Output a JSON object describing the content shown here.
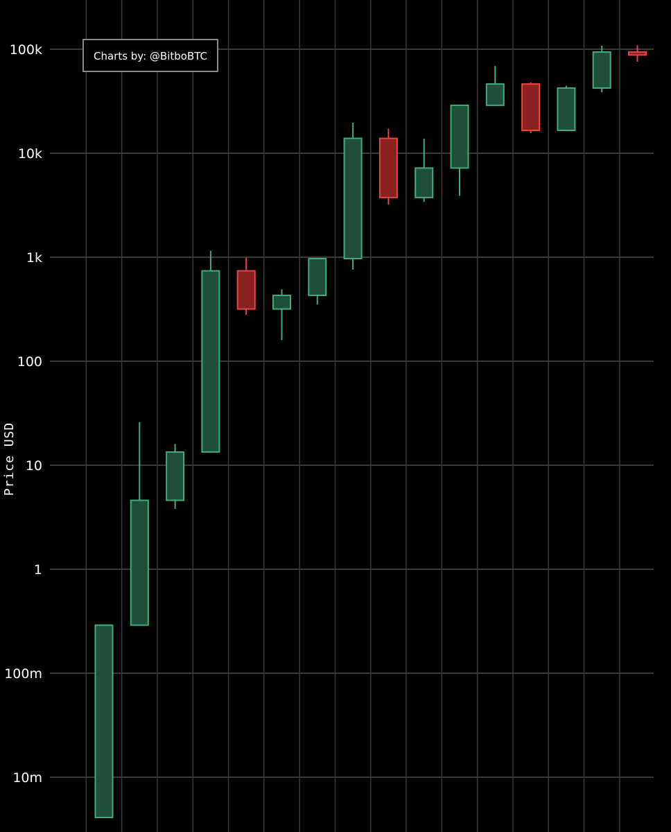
{
  "chart_data": {
    "type": "candlestick",
    "scale": "log",
    "ylabel": "Price USD",
    "ylim": [
      0.003,
      150000
    ],
    "yticks": [
      {
        "value": 0.01,
        "label": "10m"
      },
      {
        "value": 0.1,
        "label": "100m"
      },
      {
        "value": 1,
        "label": "1"
      },
      {
        "value": 10,
        "label": "10"
      },
      {
        "value": 100,
        "label": "100"
      },
      {
        "value": 1000,
        "label": "1k"
      },
      {
        "value": 10000,
        "label": "10k"
      },
      {
        "value": 100000,
        "label": "100k"
      }
    ],
    "grid": true,
    "watermark": "Charts by: @BitboBTC",
    "colors": {
      "background": "#000000",
      "grid": "#3a3a3a",
      "up_fill": "#1f4f3a",
      "up_stroke": "#3fae7c",
      "down_fill": "#8a2020",
      "down_stroke": "#e84545",
      "text": "#ffffff"
    },
    "candles": [
      {
        "open": 0.0041,
        "high": 0.29,
        "low": 0.0041,
        "close": 0.29
      },
      {
        "open": 0.29,
        "high": 26,
        "low": 0.29,
        "close": 4.6
      },
      {
        "open": 4.6,
        "high": 16,
        "low": 3.8,
        "close": 13.4
      },
      {
        "open": 13.4,
        "high": 1150,
        "low": 13.4,
        "close": 740
      },
      {
        "open": 740,
        "high": 990,
        "low": 280,
        "close": 318
      },
      {
        "open": 318,
        "high": 490,
        "low": 160,
        "close": 430
      },
      {
        "open": 430,
        "high": 975,
        "low": 350,
        "close": 970
      },
      {
        "open": 970,
        "high": 19700,
        "low": 760,
        "close": 13900
      },
      {
        "open": 13900,
        "high": 17200,
        "low": 3200,
        "close": 3750
      },
      {
        "open": 3750,
        "high": 13800,
        "low": 3400,
        "close": 7200
      },
      {
        "open": 7200,
        "high": 29000,
        "low": 3900,
        "close": 28900
      },
      {
        "open": 28900,
        "high": 69000,
        "low": 28900,
        "close": 46300
      },
      {
        "open": 46300,
        "high": 48000,
        "low": 15600,
        "close": 16600
      },
      {
        "open": 16600,
        "high": 44700,
        "low": 16500,
        "close": 42300
      },
      {
        "open": 42300,
        "high": 108000,
        "low": 38500,
        "close": 94000
      },
      {
        "open": 94000,
        "high": 109000,
        "low": 76000,
        "close": 88000
      }
    ]
  }
}
